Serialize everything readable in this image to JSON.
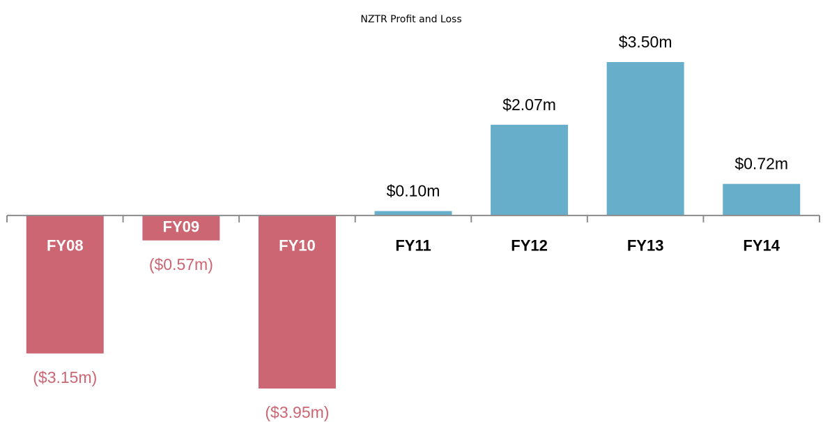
{
  "chart_data": {
    "type": "bar",
    "title": "NZTR Profit and Loss",
    "categories": [
      "FY08",
      "FY09",
      "FY10",
      "FY11",
      "FY12",
      "FY13",
      "FY14"
    ],
    "values": [
      -3.15,
      -0.57,
      -3.95,
      0.1,
      2.07,
      3.5,
      0.72
    ],
    "value_labels": [
      "($3.15m)",
      "($0.57m)",
      "($3.95m)",
      "$0.10m",
      "$2.07m",
      "$3.50m",
      "$0.72m"
    ],
    "color_positive": "#67aecb",
    "color_negative": "#cc6673"
  }
}
